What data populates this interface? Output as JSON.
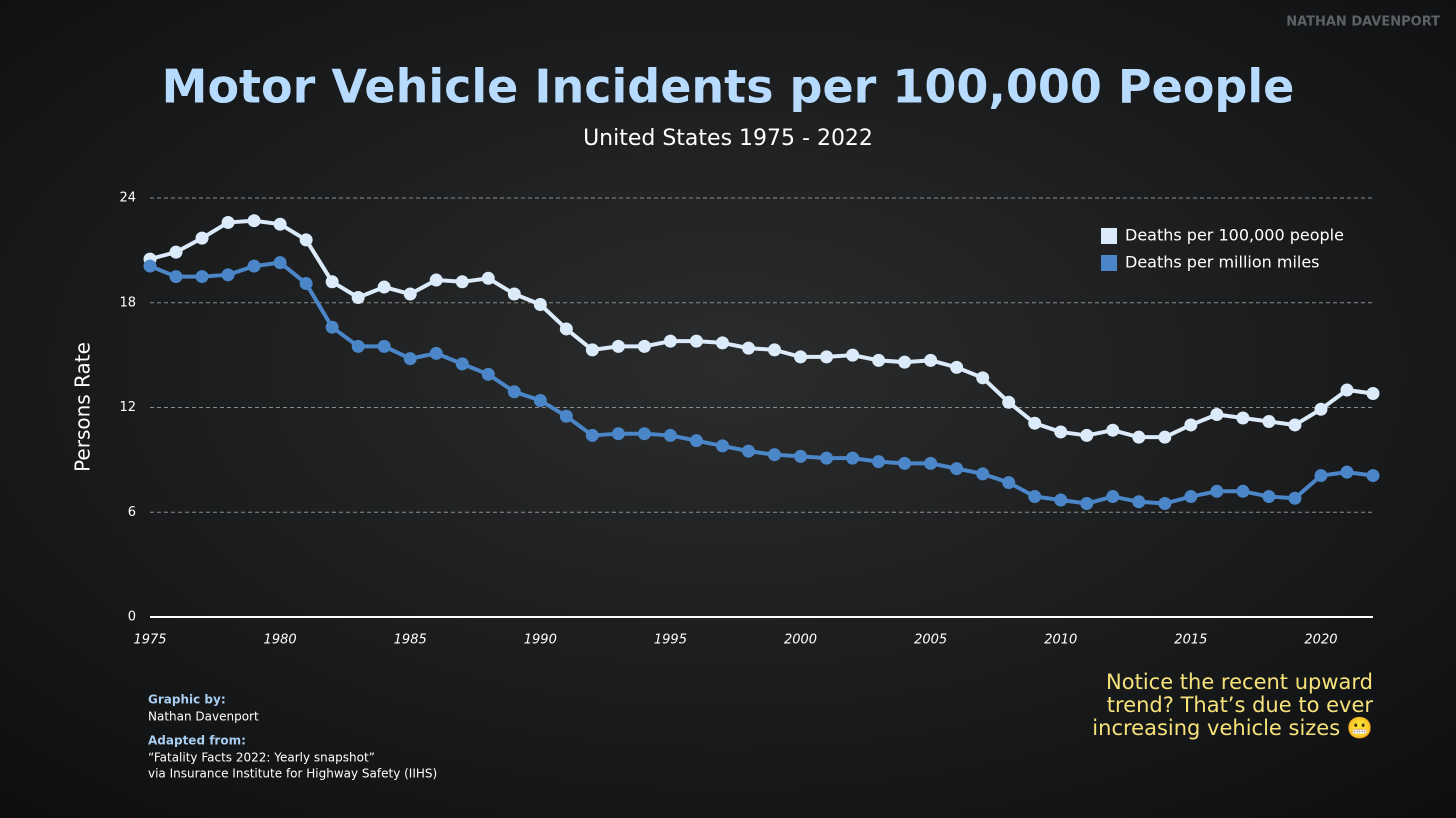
{
  "chart_data": {
    "type": "line",
    "watermark": "NATHAN DAVENPORT",
    "title": "Motor Vehicle Incidents per 100,000 People",
    "subtitle": "United States 1975 - 2022",
    "ylabel": "Persons Rate",
    "x": [
      1975,
      1976,
      1977,
      1978,
      1979,
      1980,
      1981,
      1982,
      1983,
      1984,
      1985,
      1986,
      1987,
      1988,
      1989,
      1990,
      1991,
      1992,
      1993,
      1994,
      1995,
      1996,
      1997,
      1998,
      1999,
      2000,
      2001,
      2002,
      2003,
      2004,
      2005,
      2006,
      2007,
      2008,
      2009,
      2010,
      2011,
      2012,
      2013,
      2014,
      2015,
      2016,
      2017,
      2018,
      2019,
      2020,
      2021,
      2022
    ],
    "series": [
      {
        "name": "Deaths per 100,000 people",
        "color": "#dcebf9",
        "values": [
          20.5,
          20.9,
          21.7,
          22.6,
          22.7,
          22.5,
          21.6,
          19.2,
          18.3,
          18.9,
          18.5,
          19.3,
          19.2,
          19.4,
          18.5,
          17.9,
          16.5,
          15.3,
          15.5,
          15.5,
          15.8,
          15.8,
          15.7,
          15.4,
          15.3,
          14.9,
          14.9,
          15.0,
          14.7,
          14.6,
          14.7,
          14.3,
          13.7,
          12.3,
          11.1,
          10.6,
          10.4,
          10.7,
          10.3,
          10.3,
          11.0,
          11.6,
          11.4,
          11.2,
          11.0,
          11.9,
          13.0,
          12.8
        ]
      },
      {
        "name": "Deaths per million miles",
        "color": "#4a86c8",
        "values": [
          20.1,
          19.5,
          19.5,
          19.6,
          20.1,
          20.3,
          19.1,
          16.6,
          15.5,
          15.5,
          14.8,
          15.1,
          14.5,
          13.9,
          12.9,
          12.4,
          11.5,
          10.4,
          10.5,
          10.5,
          10.4,
          10.1,
          9.8,
          9.5,
          9.3,
          9.2,
          9.1,
          9.1,
          8.9,
          8.8,
          8.8,
          8.5,
          8.2,
          7.7,
          6.9,
          6.7,
          6.5,
          6.9,
          6.6,
          6.5,
          6.9,
          7.2,
          7.2,
          6.9,
          6.8,
          8.1,
          8.3,
          8.1
        ]
      }
    ],
    "xlim": [
      1975,
      2022
    ],
    "xticks": [
      1975,
      1980,
      1985,
      1990,
      1995,
      2000,
      2005,
      2010,
      2015,
      2020
    ],
    "ylim": [
      0,
      24
    ],
    "yticks": [
      0,
      6,
      12,
      18,
      24
    ],
    "grid": true,
    "legend": "upper right",
    "annotation": [
      "Notice the recent upward",
      "trend? That’s due to ever",
      "increasing vehicle sizes 😬"
    ],
    "credits": [
      {
        "heading": "Graphic by:",
        "lines": [
          "Nathan Davenport"
        ]
      },
      {
        "heading": "Adapted from:",
        "lines": [
          "“Fatality Facts 2022: Yearly snapshot”",
          "via Insurance Institute for Highway Safety (IIHS)"
        ]
      }
    ]
  }
}
